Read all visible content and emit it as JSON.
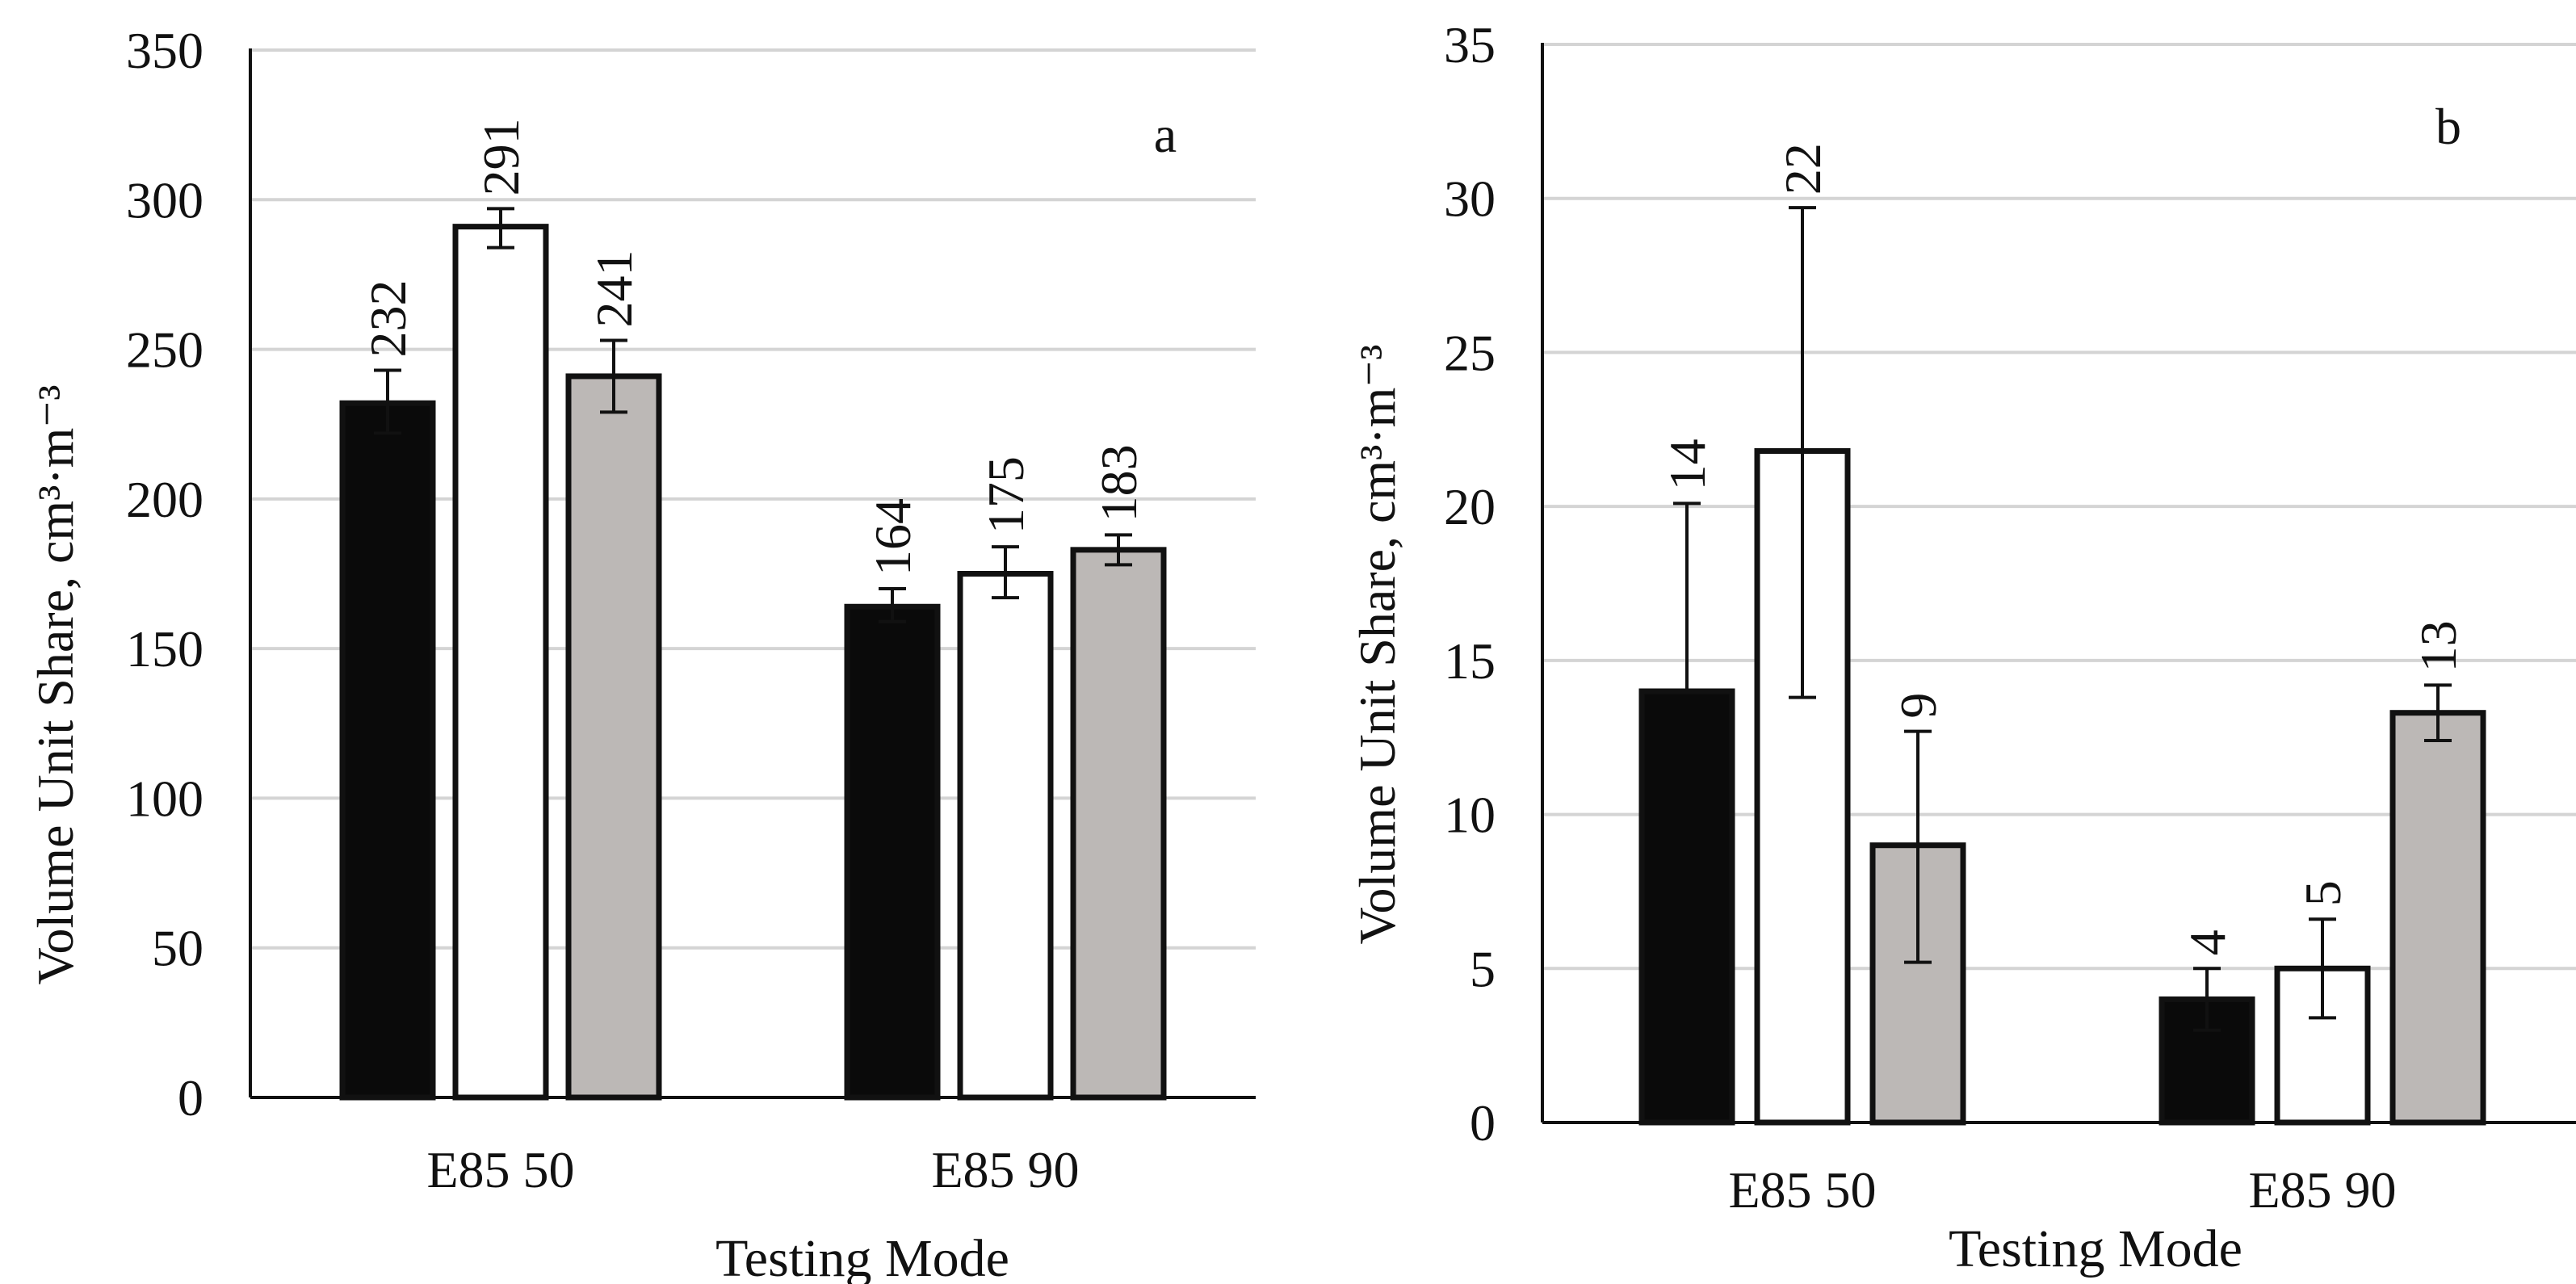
{
  "chart_data": [
    {
      "type": "bar",
      "panel_label": "a",
      "categories": [
        "E85 50",
        "E85 90"
      ],
      "xlabel": "Testing Mode",
      "ylabel": "Volume Unit Share, cm³·m⁻³",
      "ylim": [
        0,
        350
      ],
      "yticks": [
        0,
        50,
        100,
        150,
        200,
        250,
        300,
        350
      ],
      "grid": true,
      "series": [
        {
          "color": "#0a0a0a",
          "values": [
            232,
            164
          ],
          "error_low": [
            222,
            159
          ],
          "error_high": [
            243,
            170
          ],
          "labels": [
            "232",
            "164"
          ]
        },
        {
          "color": "#ffffff",
          "values": [
            291,
            175
          ],
          "error_low": [
            284,
            167
          ],
          "error_high": [
            297,
            184
          ],
          "labels": [
            "291",
            "175"
          ]
        },
        {
          "color": "#bcb8b6",
          "values": [
            241,
            183
          ],
          "error_low": [
            229,
            178
          ],
          "error_high": [
            253,
            188
          ],
          "labels": [
            "241",
            "183"
          ]
        }
      ]
    },
    {
      "type": "bar",
      "panel_label": "b",
      "categories": [
        "E85 50",
        "E85 90"
      ],
      "xlabel": "Testing Mode",
      "ylabel": "Volume Unit Share, cm³·m⁻³",
      "ylim": [
        0,
        35
      ],
      "yticks": [
        0,
        5,
        10,
        15,
        20,
        25,
        30,
        35
      ],
      "grid": true,
      "series": [
        {
          "color": "#0a0a0a",
          "values": [
            14,
            4
          ],
          "error_low": [
            14,
            3
          ],
          "error_high": [
            20.1,
            5
          ],
          "labels": [
            "14",
            "4"
          ]
        },
        {
          "color": "#ffffff",
          "values": [
            21.8,
            5
          ],
          "error_low": [
            13.8,
            3.4
          ],
          "error_high": [
            29.7,
            6.6
          ],
          "labels": [
            "22",
            "5"
          ]
        },
        {
          "color": "#bcb8b6",
          "values": [
            9,
            13.3
          ],
          "error_low": [
            5.2,
            12.4
          ],
          "error_high": [
            12.7,
            14.2
          ],
          "labels": [
            "9",
            "13"
          ]
        }
      ]
    }
  ]
}
